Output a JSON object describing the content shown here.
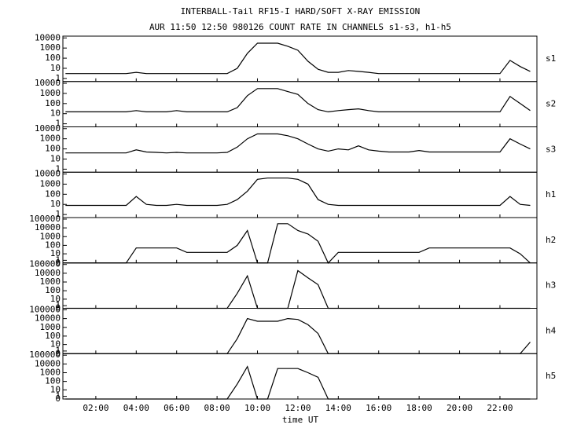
{
  "chart_data": {
    "type": "line",
    "title": "INTERBALL-Tail RF15-I HARD/SOFT X-RAY EMISSION",
    "subtitle": "AUR 11:50 12:50 980126  COUNT RATE IN CHANNELS s1-s3, h1-h5",
    "xlabel": "time UT",
    "xlim": [
      0.37,
      23.83
    ],
    "xticks": [
      {
        "value": 2,
        "label": "02:00"
      },
      {
        "value": 4,
        "label": "04:00"
      },
      {
        "value": 6,
        "label": "06:00"
      },
      {
        "value": 8,
        "label": "08:00"
      },
      {
        "value": 10,
        "label": "10:00"
      },
      {
        "value": 12,
        "label": "12:00"
      },
      {
        "value": 14,
        "label": "14:00"
      },
      {
        "value": 16,
        "label": "16:00"
      },
      {
        "value": 18,
        "label": "18:00"
      },
      {
        "value": 20,
        "label": "20:00"
      },
      {
        "value": 22,
        "label": "22:00"
      }
    ],
    "x": [
      0.5,
      1,
      1.5,
      2,
      2.5,
      3,
      3.5,
      4,
      4.5,
      5,
      5.5,
      6,
      6.5,
      7,
      7.5,
      8,
      8.5,
      9,
      9.5,
      10,
      10.5,
      11,
      11.5,
      12,
      12.5,
      13,
      13.5,
      14,
      14.5,
      15,
      15.5,
      16,
      16.5,
      17,
      17.5,
      18,
      18.5,
      19,
      19.5,
      20,
      20.5,
      21,
      21.5,
      22,
      22.5,
      23,
      23.5
    ],
    "color": "#000000",
    "series": [
      {
        "name": "s1",
        "yscale": "log",
        "ylim": [
          0.5,
          15000
        ],
        "yticks": [
          1,
          10,
          100,
          1000,
          10000
        ],
        "values": [
          3,
          3,
          3,
          3,
          3,
          3,
          3,
          4,
          3,
          3,
          3,
          3,
          3,
          3,
          3,
          3,
          3,
          10,
          300,
          3000,
          3000,
          3000,
          1500,
          600,
          50,
          8,
          4,
          4,
          6,
          5,
          4,
          3,
          3,
          3,
          3,
          3,
          3,
          3,
          3,
          3,
          3,
          3,
          3,
          3,
          60,
          15,
          5
        ]
      },
      {
        "name": "s2",
        "yscale": "log",
        "ylim": [
          0.5,
          15000
        ],
        "yticks": [
          1,
          10,
          100,
          1000,
          10000
        ],
        "values": [
          15,
          15,
          15,
          15,
          15,
          15,
          15,
          20,
          15,
          15,
          15,
          20,
          15,
          15,
          15,
          15,
          15,
          40,
          600,
          3000,
          3000,
          3000,
          1500,
          800,
          100,
          25,
          15,
          20,
          25,
          30,
          20,
          15,
          15,
          15,
          15,
          15,
          15,
          15,
          15,
          15,
          15,
          15,
          15,
          15,
          500,
          100,
          20
        ]
      },
      {
        "name": "s3",
        "yscale": "log",
        "ylim": [
          0.5,
          15000
        ],
        "yticks": [
          1,
          10,
          100,
          1000,
          10000
        ],
        "values": [
          40,
          40,
          40,
          40,
          40,
          40,
          40,
          80,
          50,
          45,
          40,
          45,
          40,
          40,
          40,
          40,
          45,
          150,
          1000,
          3000,
          3000,
          3000,
          2000,
          1000,
          300,
          100,
          60,
          100,
          80,
          200,
          80,
          60,
          50,
          50,
          50,
          70,
          50,
          50,
          50,
          50,
          50,
          50,
          50,
          50,
          1000,
          300,
          100
        ]
      },
      {
        "name": "h1",
        "yscale": "log",
        "ylim": [
          0.5,
          15000
        ],
        "yticks": [
          1,
          10,
          100,
          1000,
          10000
        ],
        "values": [
          8,
          8,
          8,
          8,
          8,
          8,
          8,
          60,
          10,
          8,
          8,
          10,
          8,
          8,
          8,
          8,
          10,
          30,
          200,
          3000,
          4000,
          4000,
          4000,
          3000,
          1000,
          30,
          10,
          8,
          8,
          8,
          8,
          8,
          8,
          8,
          8,
          8,
          8,
          8,
          8,
          8,
          8,
          8,
          8,
          8,
          60,
          10,
          8
        ]
      },
      {
        "name": "h2",
        "yscale": "log1p",
        "ylim": [
          0,
          150000
        ],
        "yticks": [
          0,
          1,
          10,
          100,
          1000,
          10000,
          100000
        ],
        "values": [
          0,
          0,
          0,
          0,
          0,
          0,
          0,
          50,
          50,
          50,
          50,
          50,
          15,
          15,
          15,
          15,
          15,
          100,
          5000,
          0,
          0,
          30000,
          30000,
          5000,
          2000,
          300,
          0,
          15,
          15,
          15,
          15,
          15,
          15,
          15,
          15,
          15,
          50,
          50,
          50,
          50,
          50,
          50,
          50,
          50,
          50,
          10,
          0
        ]
      },
      {
        "name": "h3",
        "yscale": "log1p",
        "ylim": [
          0,
          150000
        ],
        "yticks": [
          0,
          1,
          10,
          100,
          1000,
          10000,
          100000
        ],
        "values": [
          0,
          0,
          0,
          0,
          0,
          0,
          0,
          0,
          0,
          0,
          0,
          0,
          0,
          0,
          0,
          0,
          0,
          50,
          5000,
          0,
          0,
          0,
          0,
          20000,
          3000,
          500,
          0,
          0,
          0,
          0,
          0,
          0,
          0,
          0,
          0,
          0,
          0,
          0,
          0,
          0,
          0,
          0,
          0,
          0,
          0,
          0,
          0
        ]
      },
      {
        "name": "h4",
        "yscale": "log1p",
        "ylim": [
          0,
          150000
        ],
        "yticks": [
          0,
          1,
          10,
          100,
          1000,
          10000,
          100000
        ],
        "values": [
          0,
          0,
          0,
          0,
          0,
          0,
          0,
          0,
          0,
          0,
          0,
          0,
          0,
          0,
          0,
          0,
          0,
          50,
          10000,
          5000,
          5000,
          5000,
          10000,
          8000,
          2000,
          200,
          0,
          0,
          0,
          0,
          0,
          0,
          0,
          0,
          0,
          0,
          0,
          0,
          0,
          0,
          0,
          0,
          0,
          0,
          0,
          0,
          20
        ]
      },
      {
        "name": "h5",
        "yscale": "log1p",
        "ylim": [
          0,
          150000
        ],
        "yticks": [
          0,
          1,
          10,
          100,
          1000,
          10000,
          100000
        ],
        "values": [
          0,
          0,
          0,
          0,
          0,
          0,
          0,
          0,
          0,
          0,
          0,
          0,
          0,
          0,
          0,
          0,
          0,
          50,
          5000,
          0,
          0,
          3000,
          3000,
          3000,
          1000,
          300,
          0,
          0,
          0,
          0,
          0,
          0,
          0,
          0,
          0,
          0,
          0,
          0,
          0,
          0,
          0,
          0,
          0,
          0,
          0,
          0,
          0
        ]
      }
    ]
  }
}
